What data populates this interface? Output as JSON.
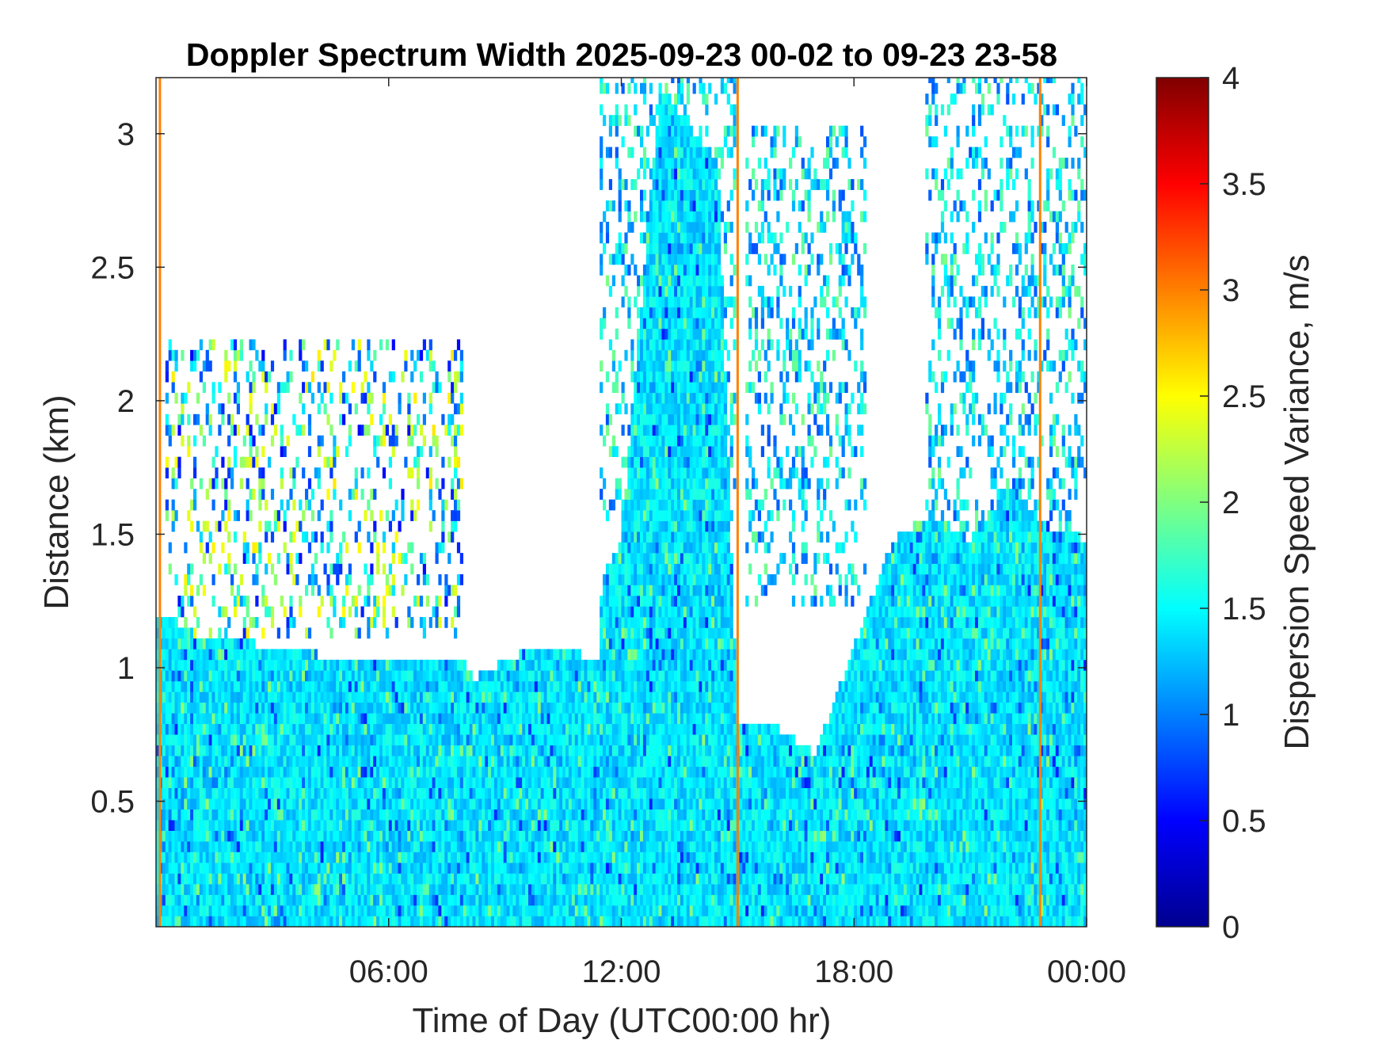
{
  "chart_data": {
    "type": "heatmap",
    "title": "Doppler Spectrum Width 2025-09-23 00-02 to 09-23 23-58",
    "xlabel": "Time of Day (UTC00:00 hr)",
    "ylabel": "Distance (km)",
    "xlim_hours": [
      0,
      24
    ],
    "ylim": [
      0.03,
      3.21
    ],
    "x_ticks": [
      {
        "value": 6,
        "label": "06:00"
      },
      {
        "value": 12,
        "label": "12:00"
      },
      {
        "value": 18,
        "label": "18:00"
      },
      {
        "value": 24,
        "label": "00:00"
      }
    ],
    "y_ticks": [
      {
        "value": 0.5,
        "label": "0.5"
      },
      {
        "value": 1,
        "label": "1"
      },
      {
        "value": 1.5,
        "label": "1.5"
      },
      {
        "value": 2,
        "label": "2"
      },
      {
        "value": 2.5,
        "label": "2.5"
      },
      {
        "value": 3,
        "label": "3"
      }
    ],
    "colorbar": {
      "label": "Dispersion Speed Variance, m/s",
      "colormap": "jet",
      "range": [
        0,
        4
      ],
      "ticks": [
        {
          "value": 0,
          "label": "0"
        },
        {
          "value": 0.5,
          "label": "0.5"
        },
        {
          "value": 1,
          "label": "1"
        },
        {
          "value": 1.5,
          "label": "1.5"
        },
        {
          "value": 2,
          "label": "2"
        },
        {
          "value": 2.5,
          "label": "2.5"
        },
        {
          "value": 3,
          "label": "3"
        },
        {
          "value": 3.5,
          "label": "3.5"
        },
        {
          "value": 4,
          "label": "4"
        }
      ]
    },
    "grid": false,
    "typical_value": 1.4,
    "echo_top_profile_km": [
      {
        "hour": 0.0,
        "top": 1.2
      },
      {
        "hour": 0.5,
        "top": 1.2
      },
      {
        "hour": 1.0,
        "top": 1.15
      },
      {
        "hour": 3.0,
        "top": 1.1
      },
      {
        "hour": 5.0,
        "top": 1.05
      },
      {
        "hour": 7.0,
        "top": 1.05
      },
      {
        "hour": 7.9,
        "top": 1.05
      },
      {
        "hour": 8.2,
        "top": 0.98
      },
      {
        "hour": 9.0,
        "top": 1.05
      },
      {
        "hour": 10.0,
        "top": 1.1
      },
      {
        "hour": 11.0,
        "top": 1.07
      },
      {
        "hour": 11.4,
        "top": 1.05
      },
      {
        "hour": 11.5,
        "top": 1.35
      },
      {
        "hour": 12.0,
        "top": 1.5
      },
      {
        "hour": 13.0,
        "top": 3.2
      },
      {
        "hour": 14.5,
        "top": 2.9
      },
      {
        "hour": 14.9,
        "top": 1.2
      },
      {
        "hour": 15.0,
        "top": 0.82
      },
      {
        "hour": 16.0,
        "top": 0.8
      },
      {
        "hour": 17.0,
        "top": 0.7
      },
      {
        "hour": 18.0,
        "top": 1.1
      },
      {
        "hour": 19.0,
        "top": 1.5
      },
      {
        "hour": 20.0,
        "top": 1.6
      },
      {
        "hour": 21.0,
        "top": 1.5
      },
      {
        "hour": 22.0,
        "top": 1.7
      },
      {
        "hour": 23.0,
        "top": 1.55
      },
      {
        "hour": 24.0,
        "top": 1.5
      }
    ],
    "scattered_layers": [
      {
        "hour_start": 0.2,
        "hour_end": 7.9,
        "bottom_km": 1.1,
        "top_km": 2.2,
        "value_range": [
          0.5,
          2.6
        ]
      },
      {
        "hour_start": 11.4,
        "hour_end": 14.9,
        "bottom_km": 1.5,
        "top_km": 3.21,
        "value_range": [
          0.8,
          2.0
        ]
      },
      {
        "hour_start": 15.2,
        "hour_end": 18.3,
        "bottom_km": 1.2,
        "top_km": 3.0,
        "value_range": [
          0.8,
          2.0
        ]
      },
      {
        "hour_start": 19.8,
        "hour_end": 24.0,
        "bottom_km": 1.5,
        "top_km": 3.21,
        "value_range": [
          0.8,
          2.0
        ]
      }
    ],
    "vertical_artifact_lines": [
      {
        "hour": 0.1,
        "value": 3.0
      },
      {
        "hour": 15.0,
        "value": 3.0
      },
      {
        "hour": 22.8,
        "value": 3.0
      }
    ]
  }
}
